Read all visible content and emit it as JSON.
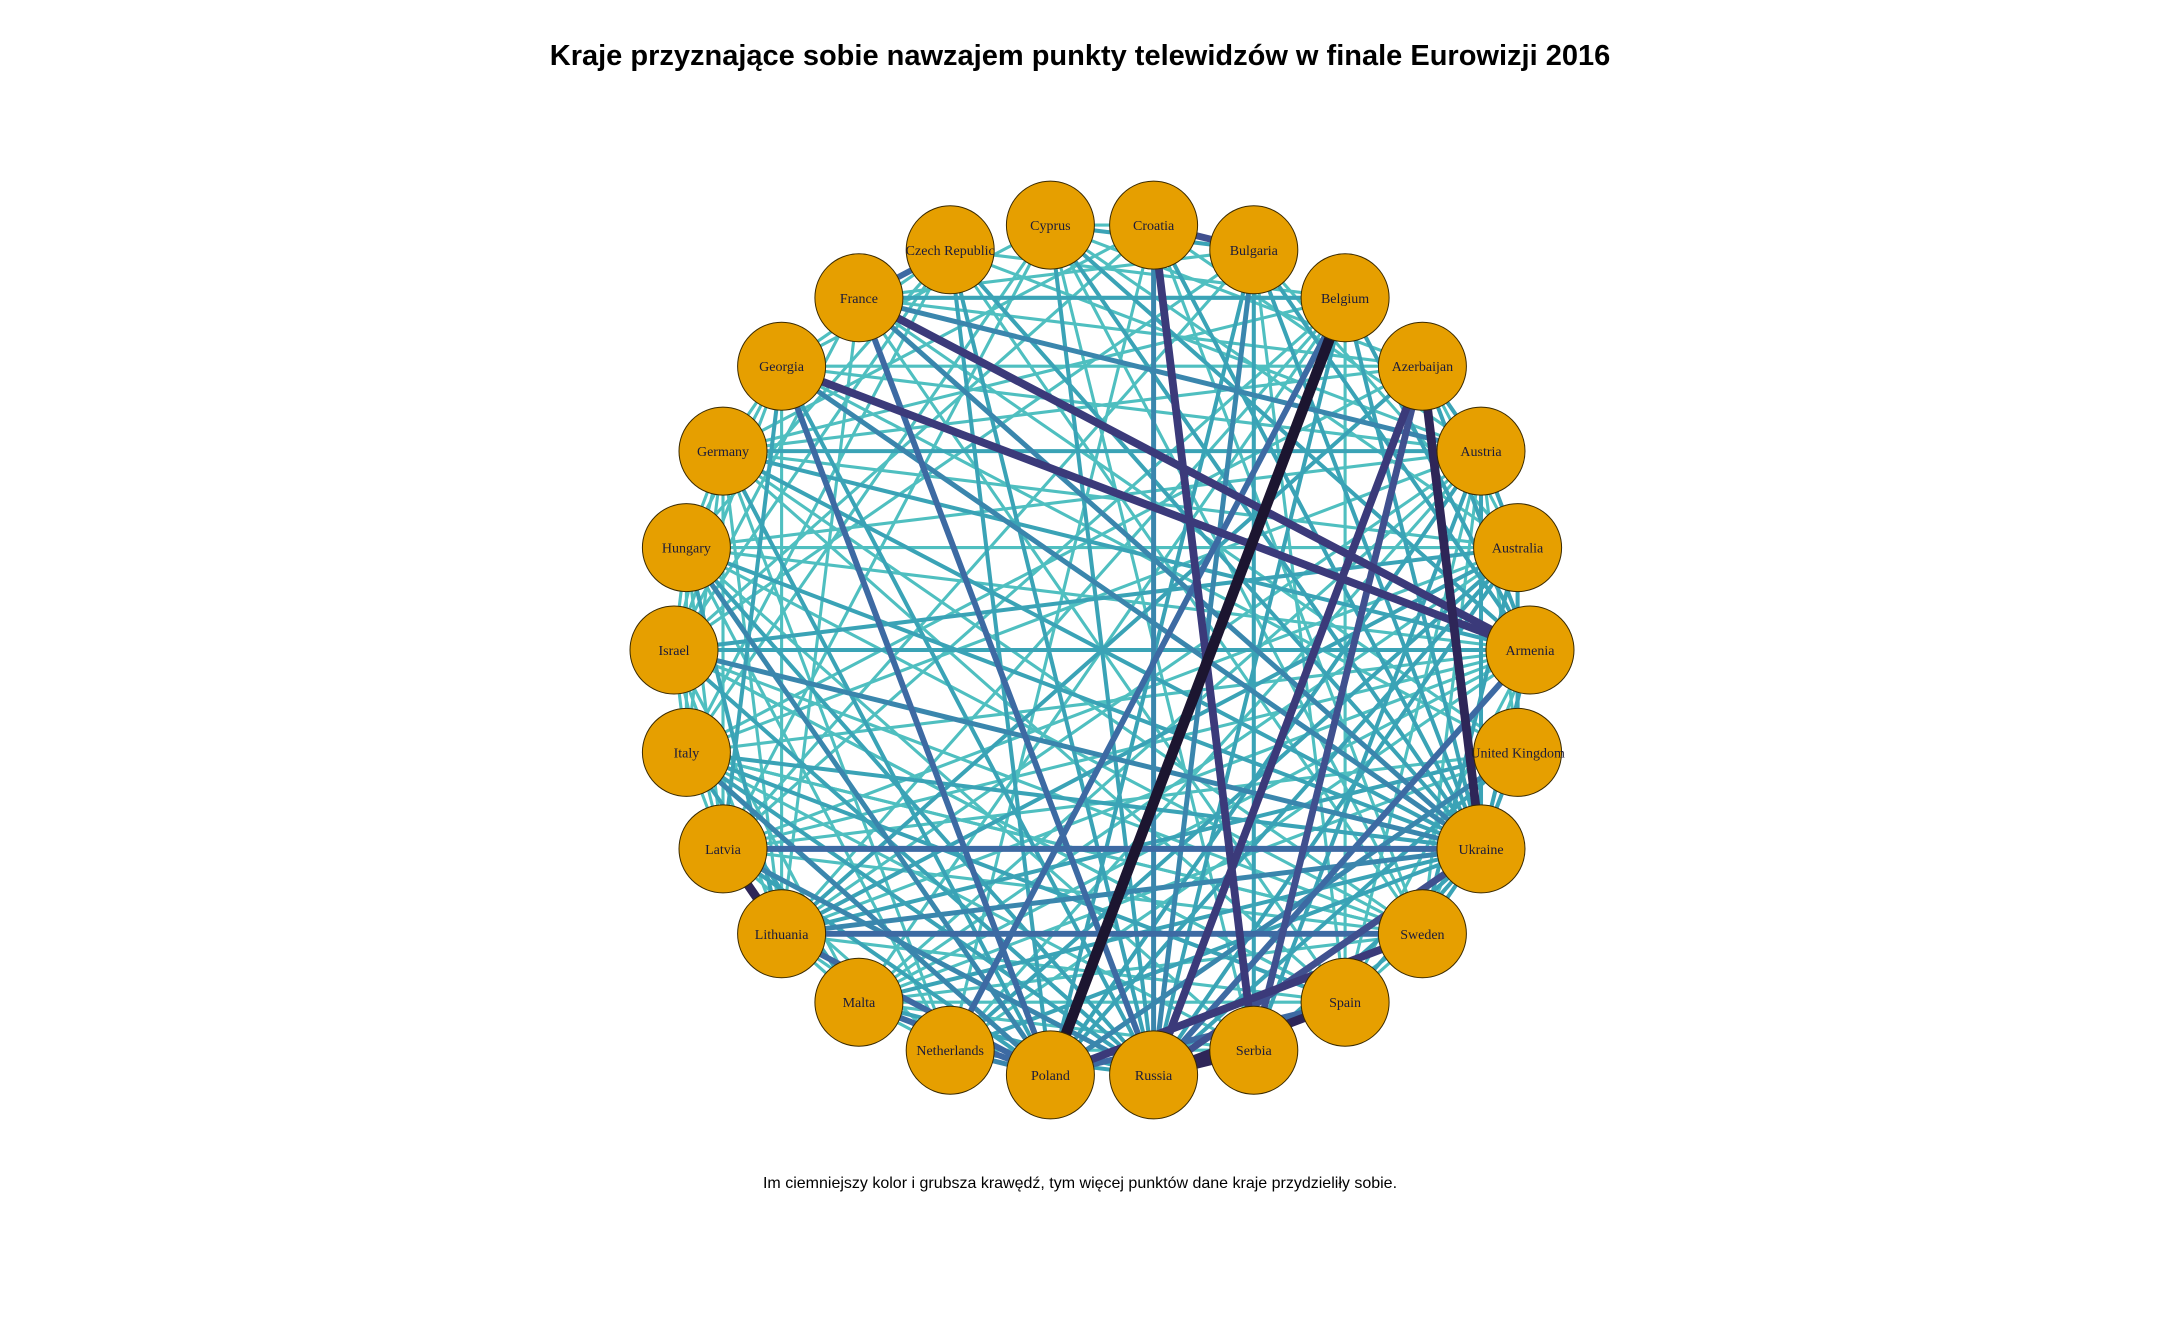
{
  "title": "Kraje przyznające sobie nawzajem punkty telewidzów w finale Eurowizji 2016",
  "caption": "Im ciemniejszy kolor i grubsza krawędź, tym więcej punktów dane kraje przydzieliły sobie.",
  "colors": {
    "node_fill": "#E69F00",
    "node_stroke": "#3a2a00",
    "edge_palette": [
      "#b8ead8",
      "#7fd8c8",
      "#4fbfc0",
      "#3aa3b6",
      "#3a86ad",
      "#3d6aa3",
      "#40508f",
      "#3b3a7a",
      "#2e2658",
      "#1c1530"
    ]
  },
  "nodes": [
    "Cyprus",
    "Croatia",
    "Bulgaria",
    "Belgium",
    "Azerbaijan",
    "Austria",
    "Australia",
    "Armenia",
    "United Kingdom",
    "Ukraine",
    "Sweden",
    "Spain",
    "Serbia",
    "Russia",
    "Poland",
    "Netherlands",
    "Malta",
    "Lithuania",
    "Latvia",
    "Italy",
    "Israel",
    "Hungary",
    "Germany",
    "Georgia",
    "France",
    "Czech Republic"
  ],
  "edges": [
    [
      "Croatia",
      "Bulgaria",
      6
    ],
    [
      "Croatia",
      "Serbia",
      7
    ],
    [
      "Croatia",
      "Russia",
      4
    ],
    [
      "Belgium",
      "Poland",
      10
    ],
    [
      "Belgium",
      "Armenia",
      3
    ],
    [
      "Belgium",
      "Netherlands",
      5
    ],
    [
      "Belgium",
      "Ukraine",
      3
    ],
    [
      "Azerbaijan",
      "Ukraine",
      8
    ],
    [
      "Azerbaijan",
      "Russia",
      7
    ],
    [
      "Azerbaijan",
      "Serbia",
      6
    ],
    [
      "Azerbaijan",
      "Lithuania",
      3
    ],
    [
      "Georgia",
      "Armenia",
      7
    ],
    [
      "Georgia",
      "Russia",
      3
    ],
    [
      "Georgia",
      "Ukraine",
      4
    ],
    [
      "Georgia",
      "Poland",
      5
    ],
    [
      "France",
      "Armenia",
      7
    ],
    [
      "France",
      "Russia",
      5
    ],
    [
      "France",
      "Ukraine",
      4
    ],
    [
      "France",
      "Austria",
      4
    ],
    [
      "France",
      "Czech Republic",
      5
    ],
    [
      "Cyprus",
      "Russia",
      3
    ],
    [
      "Cyprus",
      "Armenia",
      3
    ],
    [
      "Cyprus",
      "Ukraine",
      3
    ],
    [
      "Cyprus",
      "Australia",
      2
    ],
    [
      "Latvia",
      "Lithuania",
      8
    ],
    [
      "Latvia",
      "Ukraine",
      5
    ],
    [
      "Latvia",
      "Russia",
      4
    ],
    [
      "Latvia",
      "Poland",
      3
    ],
    [
      "Lithuania",
      "Sweden",
      5
    ],
    [
      "Lithuania",
      "Poland",
      5
    ],
    [
      "Lithuania",
      "Ukraine",
      4
    ],
    [
      "Russia",
      "Ukraine",
      6
    ],
    [
      "Russia",
      "Serbia",
      8
    ],
    [
      "Russia",
      "Spain",
      8
    ],
    [
      "Russia",
      "Armenia",
      5
    ],
    [
      "Poland",
      "Sweden",
      7
    ],
    [
      "Poland",
      "Spain",
      5
    ],
    [
      "Poland",
      "Malta",
      5
    ],
    [
      "Poland",
      "Netherlands",
      4
    ],
    [
      "Poland",
      "Hungary",
      4
    ],
    [
      "Poland",
      "Germany",
      3
    ],
    [
      "Poland",
      "Austria",
      3
    ],
    [
      "Poland",
      "Italy",
      4
    ],
    [
      "Poland",
      "United Kingdom",
      4
    ],
    [
      "Poland",
      "Australia",
      3
    ],
    [
      "Ukraine",
      "Austria",
      3
    ],
    [
      "Ukraine",
      "Armenia",
      3
    ],
    [
      "Ukraine",
      "United Kingdom",
      3
    ],
    [
      "Ukraine",
      "Israel",
      4
    ],
    [
      "Ukraine",
      "Italy",
      3
    ],
    [
      "Ukraine",
      "Hungary",
      3
    ],
    [
      "Ukraine",
      "Germany",
      3
    ],
    [
      "Ukraine",
      "Malta",
      3
    ],
    [
      "Ukraine",
      "Netherlands",
      3
    ],
    [
      "Australia",
      "Sweden",
      3
    ],
    [
      "Australia",
      "United Kingdom",
      3
    ],
    [
      "Australia",
      "Israel",
      3
    ],
    [
      "Australia",
      "Hungary",
      2
    ],
    [
      "Australia",
      "Netherlands",
      3
    ],
    [
      "Australia",
      "Malta",
      2
    ],
    [
      "Australia",
      "Bulgaria",
      2
    ],
    [
      "Australia",
      "Germany",
      2
    ],
    [
      "Armenia",
      "Israel",
      3
    ],
    [
      "Armenia",
      "Germany",
      3
    ],
    [
      "Armenia",
      "Netherlands",
      2
    ],
    [
      "Armenia",
      "Spain",
      2
    ],
    [
      "Sweden",
      "Ukraine",
      3
    ],
    [
      "Sweden",
      "Spain",
      2
    ],
    [
      "Sweden",
      "Malta",
      2
    ],
    [
      "Sweden",
      "Israel",
      2
    ],
    [
      "Sweden",
      "Italy",
      2
    ],
    [
      "Spain",
      "Italy",
      3
    ],
    [
      "Spain",
      "Israel",
      2
    ],
    [
      "Serbia",
      "Bulgaria",
      3
    ],
    [
      "Serbia",
      "Hungary",
      2
    ],
    [
      "Serbia",
      "Austria",
      3
    ],
    [
      "Serbia",
      "Cyprus",
      2
    ],
    [
      "Bulgaria",
      "Russia",
      4
    ],
    [
      "Bulgaria",
      "Cyprus",
      3
    ],
    [
      "Bulgaria",
      "Ukraine",
      3
    ],
    [
      "Bulgaria",
      "Poland",
      3
    ],
    [
      "Bulgaria",
      "France",
      2
    ],
    [
      "Czech Republic",
      "Ukraine",
      3
    ],
    [
      "Czech Republic",
      "Russia",
      3
    ],
    [
      "Czech Republic",
      "Poland",
      3
    ],
    [
      "Czech Republic",
      "Italy",
      2
    ],
    [
      "Czech Republic",
      "Austria",
      2
    ],
    [
      "Czech Republic",
      "Sweden",
      2
    ],
    [
      "Germany",
      "Austria",
      3
    ],
    [
      "Germany",
      "Netherlands",
      2
    ],
    [
      "Germany",
      "Italy",
      2
    ],
    [
      "Germany",
      "Spain",
      2
    ],
    [
      "Germany",
      "Israel",
      2
    ],
    [
      "Germany",
      "Lithuania",
      2
    ],
    [
      "Germany",
      "Ukraine",
      2
    ],
    [
      "Hungary",
      "Lithuania",
      3
    ],
    [
      "Hungary",
      "Netherlands",
      2
    ],
    [
      "Hungary",
      "Austria",
      2
    ],
    [
      "Hungary",
      "Russia",
      3
    ],
    [
      "Hungary",
      "Sweden",
      2
    ],
    [
      "Israel",
      "Russia",
      3
    ],
    [
      "Israel",
      "Spain",
      2
    ],
    [
      "Israel",
      "Armenia",
      2
    ],
    [
      "Israel",
      "Malta",
      2
    ],
    [
      "Israel",
      "Lithuania",
      2
    ],
    [
      "Italy",
      "Malta",
      3
    ],
    [
      "Italy",
      "Russia",
      3
    ],
    [
      "Italy",
      "Spain",
      2
    ],
    [
      "Italy",
      "Austria",
      2
    ],
    [
      "Italy",
      "Armenia",
      2
    ],
    [
      "Italy",
      "Sweden",
      2
    ],
    [
      "Malta",
      "Russia",
      3
    ],
    [
      "Malta",
      "Armenia",
      2
    ],
    [
      "Malta",
      "Netherlands",
      2
    ],
    [
      "Malta",
      "United Kingdom",
      2
    ],
    [
      "Netherlands",
      "Austria",
      2
    ],
    [
      "Netherlands",
      "Russia",
      3
    ],
    [
      "Netherlands",
      "Serbia",
      2
    ],
    [
      "United Kingdom",
      "Lithuania",
      3
    ],
    [
      "United Kingdom",
      "Latvia",
      2
    ],
    [
      "United Kingdom",
      "Russia",
      3
    ],
    [
      "United Kingdom",
      "Austria",
      2
    ],
    [
      "United Kingdom",
      "Georgia",
      2
    ],
    [
      "United Kingdom",
      "France",
      2
    ],
    [
      "Austria",
      "Azerbaijan",
      3
    ],
    [
      "Austria",
      "Sweden",
      2
    ],
    [
      "Austria",
      "Spain",
      2
    ],
    [
      "Austria",
      "Georgia",
      2
    ],
    [
      "Azerbaijan",
      "Georgia",
      2
    ],
    [
      "Azerbaijan",
      "Cyprus",
      2
    ],
    [
      "Azerbaijan",
      "Germany",
      2
    ],
    [
      "Azerbaijan",
      "France",
      2
    ],
    [
      "Belgium",
      "France",
      3
    ],
    [
      "Belgium",
      "Germany",
      2
    ],
    [
      "Belgium",
      "Lithuania",
      2
    ],
    [
      "Belgium",
      "Russia",
      3
    ],
    [
      "Belgium",
      "Latvia",
      2
    ],
    [
      "Croatia",
      "Ukraine",
      3
    ],
    [
      "Croatia",
      "Austria",
      2
    ],
    [
      "Croatia",
      "Netherlands",
      2
    ],
    [
      "Croatia",
      "Israel",
      2
    ],
    [
      "Cyprus",
      "Georgia",
      2
    ],
    [
      "Cyprus",
      "Latvia",
      2
    ],
    [
      "Cyprus",
      "Italy",
      2
    ],
    [
      "Cyprus",
      "Sweden",
      2
    ],
    [
      "Georgia",
      "Latvia",
      3
    ],
    [
      "Georgia",
      "Lithuania",
      2
    ],
    [
      "Georgia",
      "Israel",
      2
    ],
    [
      "Georgia",
      "Germany",
      2
    ],
    [
      "France",
      "Spain",
      2
    ],
    [
      "France",
      "Israel",
      2
    ],
    [
      "France",
      "Lithuania",
      2
    ],
    [
      "Latvia",
      "Hungary",
      2
    ],
    [
      "Latvia",
      "Israel",
      2
    ],
    [
      "Latvia",
      "Germany",
      2
    ],
    [
      "Latvia",
      "Australia",
      2
    ],
    [
      "Lithuania",
      "Australia",
      3
    ],
    [
      "Lithuania",
      "Armenia",
      2
    ],
    [
      "Spain",
      "Ukraine",
      3
    ],
    [
      "Spain",
      "Lithuania",
      2
    ],
    [
      "Serbia",
      "Ukraine",
      3
    ],
    [
      "Serbia",
      "Malta",
      2
    ],
    [
      "Serbia",
      "Italy",
      2
    ],
    [
      "Serbia",
      "Sweden",
      2
    ],
    [
      "Bulgaria",
      "Armenia",
      3
    ],
    [
      "Bulgaria",
      "Latvia",
      2
    ],
    [
      "Bulgaria",
      "Israel",
      2
    ],
    [
      "Bulgaria",
      "Spain",
      2
    ],
    [
      "Croatia",
      "Cyprus",
      2
    ],
    [
      "Croatia",
      "Sweden",
      2
    ],
    [
      "Croatia",
      "Germany",
      2
    ],
    [
      "Czech Republic",
      "Israel",
      2
    ],
    [
      "Czech Republic",
      "Hungary",
      2
    ],
    [
      "Czech Republic",
      "Georgia",
      2
    ],
    [
      "Czech Republic",
      "Belgium",
      2
    ],
    [
      "Hungary",
      "Armenia",
      2
    ],
    [
      "Hungary",
      "Italy",
      2
    ],
    [
      "Hungary",
      "Georgia",
      2
    ],
    [
      "Azerbaijan",
      "Armenia",
      3
    ],
    [
      "Azerbaijan",
      "Australia",
      2
    ],
    [
      "Azerbaijan",
      "Italy",
      2
    ],
    [
      "Australia",
      "Russia",
      3
    ],
    [
      "Australia",
      "Austria",
      3
    ],
    [
      "Austria",
      "Malta",
      2
    ],
    [
      "Austria",
      "Lithuania",
      2
    ],
    [
      "Armenia",
      "Sweden",
      2
    ],
    [
      "Armenia",
      "Latvia",
      2
    ],
    [
      "Belgium",
      "Spain",
      2
    ],
    [
      "Belgium",
      "Malta",
      2
    ],
    [
      "Netherlands",
      "Lithuania",
      2
    ],
    [
      "Netherlands",
      "Latvia",
      2
    ],
    [
      "Malta",
      "Lithuania",
      2
    ],
    [
      "Sweden",
      "Latvia",
      2
    ],
    [
      "Spain",
      "Malta",
      2
    ],
    [
      "Israel",
      "Italy",
      2
    ],
    [
      "Israel",
      "Hungary",
      2
    ],
    [
      "Italy",
      "Latvia",
      2
    ],
    [
      "Germany",
      "Hungary",
      2
    ],
    [
      "Germany",
      "Sweden",
      2
    ]
  ]
}
